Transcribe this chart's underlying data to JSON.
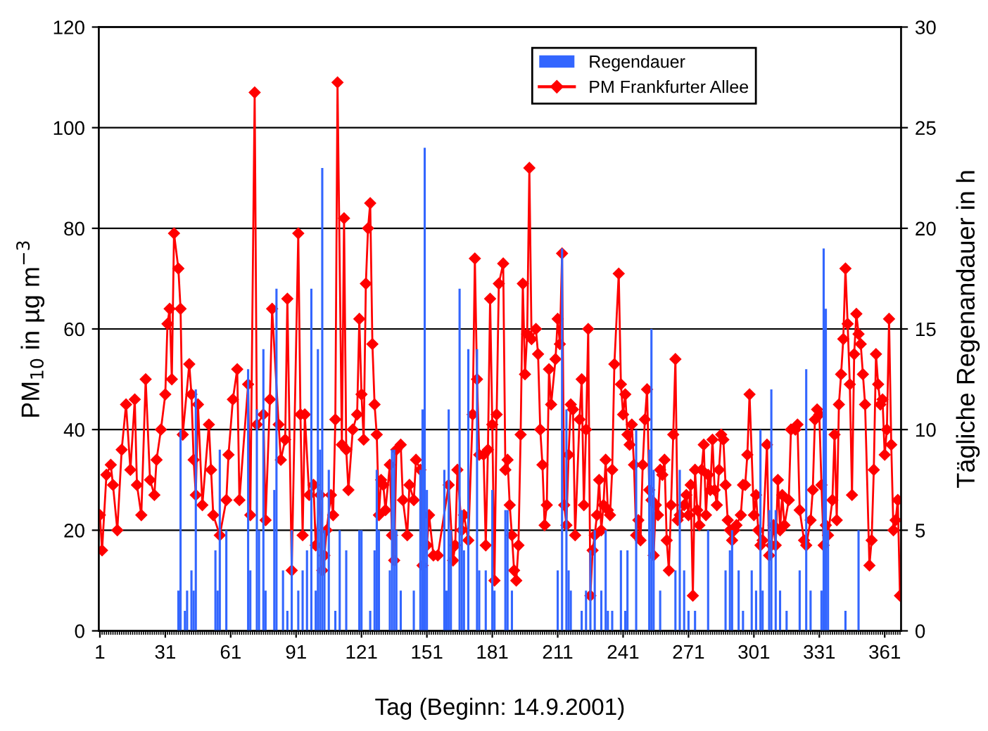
{
  "chart_data": {
    "type": "line",
    "xlabel": "Tag (Beginn: 14.9.2001)",
    "ylabel": "PM$_{10}$ in µg m$^{−3}$",
    "y2label": "Tägliche Regenandauer in h",
    "xlim": [
      0.5,
      368.5
    ],
    "xticks": [
      1,
      31,
      61,
      91,
      121,
      151,
      181,
      211,
      241,
      271,
      301,
      331,
      361
    ],
    "ylim": [
      0,
      120
    ],
    "yticks": [
      0,
      20,
      40,
      60,
      80,
      100,
      120
    ],
    "y2lim": [
      0,
      30
    ],
    "y2ticks": [
      0,
      5,
      10,
      15,
      20,
      25,
      30
    ],
    "grid": "y",
    "legend": "top right",
    "series": [
      {
        "name": "Regendauer",
        "type": "bar",
        "axis": "y2",
        "color": "#3366ff",
        "x": [
          37,
          38,
          40,
          41,
          43,
          44,
          45,
          54,
          55,
          56,
          59,
          69,
          70,
          73,
          74,
          76,
          77,
          81,
          82,
          85,
          87,
          89,
          92,
          94,
          96,
          98,
          100,
          101,
          102,
          103,
          104,
          106,
          109,
          111,
          114,
          120,
          121,
          125,
          127,
          128,
          129,
          134,
          135,
          136,
          137,
          139,
          145,
          148,
          149,
          150,
          151,
          159,
          160,
          161,
          162,
          166,
          167,
          168,
          170,
          174,
          175,
          178,
          181,
          182,
          187,
          188,
          190,
          211,
          213,
          215,
          216,
          217,
          222,
          224,
          226,
          228,
          231,
          233,
          234,
          236,
          240,
          242,
          243,
          247,
          253,
          254,
          255,
          258,
          265,
          267,
          269,
          271,
          274,
          280,
          288,
          290,
          291,
          294,
          296,
          300,
          302,
          304,
          305,
          308,
          309,
          311,
          313,
          316,
          322,
          325,
          327,
          332,
          333,
          334,
          335,
          343,
          349
        ],
        "values": [
          2,
          10,
          1,
          2,
          3,
          2,
          12,
          4,
          2,
          9,
          5,
          13,
          3,
          11,
          5,
          14,
          2,
          7,
          17,
          3,
          1,
          5,
          2,
          3,
          4,
          17,
          2,
          14,
          9,
          23,
          5,
          8,
          1,
          5,
          4,
          5,
          5,
          1,
          4,
          8,
          5,
          3,
          9,
          9,
          5,
          2,
          2,
          8,
          11,
          24,
          7,
          8,
          2,
          11,
          5,
          17,
          6,
          4,
          14,
          14,
          3,
          3,
          7,
          2,
          6,
          6,
          2,
          3,
          19,
          11,
          3,
          2,
          1,
          2,
          4,
          5,
          2,
          5,
          1,
          1,
          4,
          1,
          4,
          10,
          9,
          15,
          8,
          2,
          3,
          8,
          3,
          1,
          1,
          5,
          3,
          4,
          5,
          3,
          1,
          3,
          2,
          10,
          2,
          6,
          12,
          6,
          2,
          1,
          3,
          13,
          2,
          2,
          19,
          16,
          5,
          1,
          5
        ]
      },
      {
        "name": "PM Frankfurter Allee",
        "axis": "y",
        "color": "#ff0000",
        "marker": "diamond",
        "line_style": "solid",
        "x": [
          1,
          2,
          4,
          6,
          7,
          9,
          11,
          13,
          15,
          17,
          18,
          20,
          22,
          24,
          26,
          27,
          29,
          31,
          32,
          33,
          34,
          35,
          37,
          38,
          39,
          42,
          43,
          44,
          45,
          46,
          48,
          51,
          52,
          53,
          56,
          59,
          60,
          62,
          64,
          65,
          69,
          70,
          72,
          73,
          76,
          77,
          79,
          80,
          83,
          84,
          86,
          87,
          89,
          92,
          93,
          94,
          95,
          97,
          99,
          100,
          102,
          103,
          104,
          105,
          107,
          108,
          109,
          110,
          112,
          113,
          114,
          115,
          117,
          119,
          120,
          121,
          122,
          123,
          124,
          125,
          126,
          127,
          128,
          129,
          130,
          131,
          132,
          134,
          135,
          136,
          137,
          139,
          140,
          142,
          143,
          145,
          146,
          148,
          149,
          151,
          152,
          154,
          156,
          161,
          163,
          164,
          165,
          167,
          168,
          170,
          172,
          173,
          174,
          175,
          177,
          178,
          179,
          180,
          181,
          182,
          183,
          184,
          186,
          187,
          188,
          189,
          190,
          191,
          192,
          193,
          194,
          195,
          196,
          197,
          198,
          199,
          201,
          202,
          203,
          204,
          205,
          206,
          207,
          208,
          210,
          211,
          212,
          213,
          214,
          215,
          216,
          217,
          218,
          219,
          221,
          222,
          223,
          224,
          225,
          226,
          227,
          228,
          229,
          230,
          231,
          232,
          233,
          234,
          235,
          236,
          237,
          239,
          240,
          241,
          242,
          243,
          244,
          245,
          246,
          247,
          248,
          249,
          250,
          251,
          252,
          253,
          254,
          255,
          256,
          257,
          258,
          259,
          260,
          261,
          262,
          263,
          264,
          265,
          266,
          267,
          269,
          270,
          271,
          272,
          273,
          274,
          275,
          276,
          277,
          278,
          279,
          280,
          281,
          282,
          283,
          284,
          285,
          286,
          287,
          288,
          289,
          290,
          291,
          292,
          293,
          295,
          296,
          297,
          298,
          299,
          301,
          302,
          303,
          304,
          305,
          307,
          308,
          309,
          310,
          311,
          312,
          313,
          314,
          315,
          317,
          318,
          320,
          321,
          322,
          324,
          325,
          327,
          328,
          329,
          330,
          331,
          332,
          333,
          334,
          335,
          337,
          338,
          339,
          340,
          341,
          342,
          343,
          344,
          345,
          346,
          347,
          348,
          349,
          350,
          351,
          352,
          354,
          355,
          356,
          357,
          358,
          359,
          360,
          361,
          362,
          363,
          364,
          365,
          366,
          367,
          368
        ],
        "values": [
          23,
          16,
          31,
          33,
          29,
          20,
          36,
          45,
          32,
          46,
          29,
          23,
          50,
          30,
          27,
          34,
          40,
          47,
          61,
          64,
          50,
          79,
          72,
          64,
          39,
          53,
          47,
          34,
          27,
          45,
          25,
          41,
          32,
          23,
          19,
          26,
          35,
          46,
          52,
          26,
          49,
          23,
          107,
          41,
          43,
          22,
          46,
          64,
          41,
          34,
          38,
          66,
          12,
          79,
          43,
          19,
          43,
          27,
          29,
          17,
          27,
          12,
          15,
          20,
          27,
          23,
          42,
          109,
          37,
          82,
          36,
          28,
          40,
          43,
          62,
          47,
          38,
          69,
          80,
          85,
          57,
          45,
          39,
          23,
          30,
          29,
          24,
          33,
          19,
          14,
          36,
          37,
          26,
          19,
          29,
          26,
          34,
          32,
          13,
          17,
          23,
          15,
          15,
          29,
          14,
          17,
          32,
          20,
          23,
          18,
          43,
          74,
          50,
          35,
          35,
          17,
          36,
          66,
          41,
          10,
          43,
          69,
          73,
          32,
          34,
          25,
          19,
          12,
          10,
          17,
          39,
          69,
          51,
          59,
          92,
          58,
          60,
          55,
          40,
          33,
          21,
          25,
          52,
          45,
          54,
          62,
          57,
          75,
          25,
          21,
          35,
          45,
          44,
          19,
          42,
          50,
          25,
          40,
          60,
          7,
          16,
          19,
          23,
          30,
          20,
          25,
          34,
          24,
          23,
          32,
          53,
          71,
          49,
          43,
          47,
          39,
          37,
          41,
          33,
          19,
          22,
          18,
          33,
          42,
          48,
          28,
          26,
          15,
          25,
          23,
          32,
          31,
          34,
          18,
          12,
          25,
          39,
          54,
          22,
          23,
          25,
          27,
          23,
          29,
          7,
          32,
          24,
          21,
          32,
          37,
          23,
          31,
          28,
          38,
          28,
          25,
          32,
          39,
          38,
          29,
          22,
          20,
          18,
          20,
          21,
          23,
          29,
          29,
          35,
          47,
          23,
          27,
          20,
          17,
          18,
          37,
          15,
          17,
          21,
          17,
          30,
          20,
          27,
          21,
          26,
          40,
          40,
          41,
          24,
          18,
          17,
          22,
          28,
          42,
          44,
          43,
          29,
          17,
          21,
          19,
          26,
          39,
          22,
          45,
          51,
          58,
          72,
          61,
          49,
          27,
          55,
          63,
          59,
          57,
          51,
          45,
          13,
          18,
          32,
          55,
          49,
          45,
          46,
          35,
          40,
          62,
          37,
          20,
          22,
          26,
          7
        ]
      }
    ]
  }
}
